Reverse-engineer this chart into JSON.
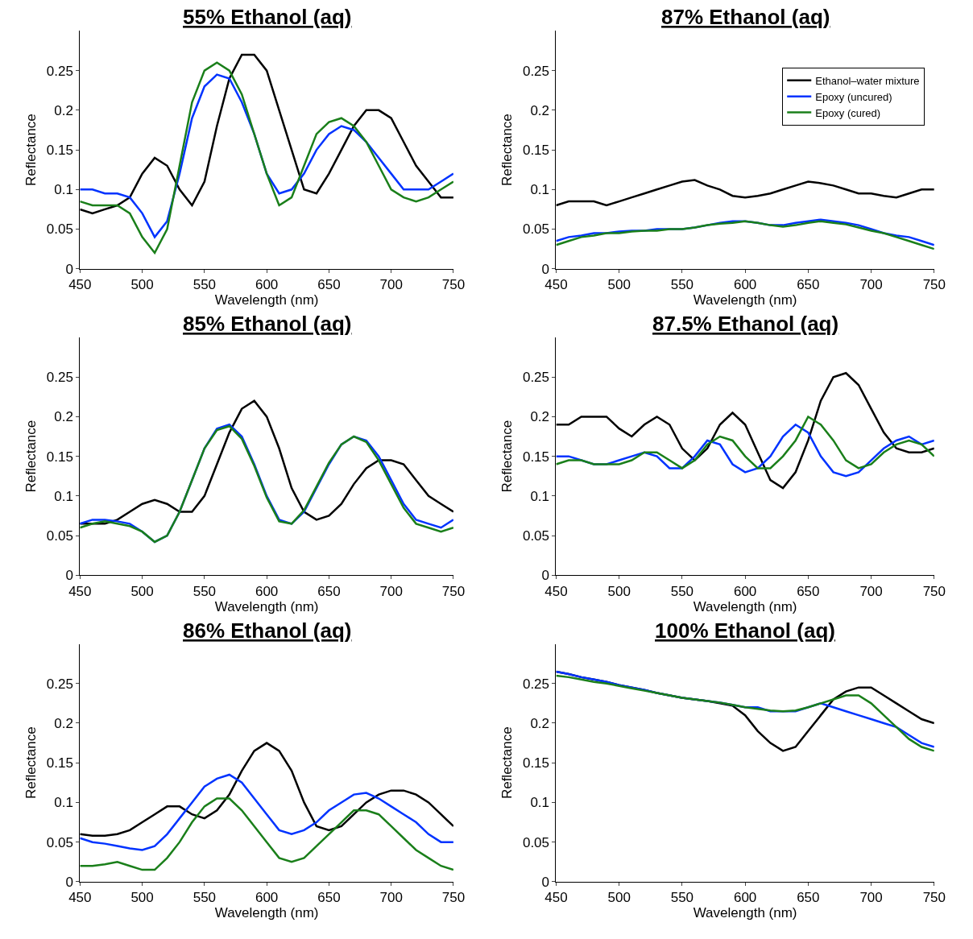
{
  "chart_data": [
    {
      "type": "line",
      "title": "55% Ethanol (aq)",
      "xlabel": "Wavelength (nm)",
      "ylabel": "Reflectance",
      "xlim": [
        450,
        750
      ],
      "xticks": [
        450,
        500,
        550,
        600,
        650,
        700,
        750
      ],
      "ylim": [
        0,
        0.3
      ],
      "yticks": [
        0,
        0.05,
        0.1,
        0.15,
        0.2,
        0.25
      ],
      "x": [
        450,
        460,
        470,
        480,
        490,
        500,
        510,
        520,
        530,
        540,
        550,
        560,
        570,
        580,
        590,
        600,
        610,
        620,
        630,
        640,
        650,
        660,
        670,
        680,
        690,
        700,
        710,
        720,
        730,
        740,
        750
      ],
      "series": [
        {
          "color": "#000000",
          "values": [
            0.075,
            0.07,
            0.075,
            0.08,
            0.09,
            0.12,
            0.14,
            0.13,
            0.1,
            0.08,
            0.11,
            0.18,
            0.24,
            0.27,
            0.27,
            0.25,
            0.2,
            0.15,
            0.1,
            0.095,
            0.12,
            0.15,
            0.18,
            0.2,
            0.2,
            0.19,
            0.16,
            0.13,
            0.11,
            0.09,
            0.09
          ]
        },
        {
          "color": "#0033ff",
          "values": [
            0.1,
            0.1,
            0.095,
            0.095,
            0.09,
            0.07,
            0.04,
            0.06,
            0.12,
            0.19,
            0.23,
            0.245,
            0.24,
            0.21,
            0.17,
            0.12,
            0.095,
            0.1,
            0.12,
            0.15,
            0.17,
            0.18,
            0.175,
            0.16,
            0.14,
            0.12,
            0.1,
            0.1,
            0.1,
            0.11,
            0.12
          ]
        },
        {
          "color": "#1a7f1a",
          "values": [
            0.085,
            0.08,
            0.08,
            0.08,
            0.07,
            0.04,
            0.02,
            0.05,
            0.13,
            0.21,
            0.25,
            0.26,
            0.25,
            0.22,
            0.17,
            0.12,
            0.08,
            0.09,
            0.13,
            0.17,
            0.185,
            0.19,
            0.18,
            0.16,
            0.13,
            0.1,
            0.09,
            0.085,
            0.09,
            0.1,
            0.11
          ]
        }
      ]
    },
    {
      "type": "line",
      "title": "87% Ethanol (aq)",
      "xlabel": "Wavelength (nm)",
      "ylabel": "Reflectance",
      "xlim": [
        450,
        750
      ],
      "xticks": [
        450,
        500,
        550,
        600,
        650,
        700,
        750
      ],
      "ylim": [
        0,
        0.3
      ],
      "yticks": [
        0,
        0.05,
        0.1,
        0.15,
        0.2,
        0.25
      ],
      "legend": "top right",
      "x": [
        450,
        460,
        470,
        480,
        490,
        500,
        510,
        520,
        530,
        540,
        550,
        560,
        570,
        580,
        590,
        600,
        610,
        620,
        630,
        640,
        650,
        660,
        670,
        680,
        690,
        700,
        710,
        720,
        730,
        740,
        750
      ],
      "series": [
        {
          "name": "Ethanol–water mixture",
          "color": "#000000",
          "values": [
            0.08,
            0.085,
            0.085,
            0.085,
            0.08,
            0.085,
            0.09,
            0.095,
            0.1,
            0.105,
            0.11,
            0.112,
            0.105,
            0.1,
            0.092,
            0.09,
            0.092,
            0.095,
            0.1,
            0.105,
            0.11,
            0.108,
            0.105,
            0.1,
            0.095,
            0.095,
            0.092,
            0.09,
            0.095,
            0.1,
            0.1
          ]
        },
        {
          "name": "Epoxy (uncured)",
          "color": "#0033ff",
          "values": [
            0.035,
            0.04,
            0.042,
            0.045,
            0.045,
            0.047,
            0.048,
            0.048,
            0.05,
            0.05,
            0.05,
            0.052,
            0.055,
            0.058,
            0.06,
            0.06,
            0.058,
            0.055,
            0.055,
            0.058,
            0.06,
            0.062,
            0.06,
            0.058,
            0.055,
            0.05,
            0.045,
            0.042,
            0.04,
            0.035,
            0.03
          ]
        },
        {
          "name": "Epoxy (cured)",
          "color": "#1a7f1a",
          "values": [
            0.03,
            0.035,
            0.04,
            0.042,
            0.045,
            0.045,
            0.047,
            0.048,
            0.048,
            0.05,
            0.05,
            0.052,
            0.055,
            0.057,
            0.058,
            0.06,
            0.058,
            0.055,
            0.053,
            0.055,
            0.058,
            0.06,
            0.058,
            0.056,
            0.052,
            0.048,
            0.045,
            0.04,
            0.035,
            0.03,
            0.025
          ]
        }
      ]
    },
    {
      "type": "line",
      "title": "85% Ethanol (aq)",
      "xlabel": "Wavelength (nm)",
      "ylabel": "Reflectance",
      "xlim": [
        450,
        750
      ],
      "xticks": [
        450,
        500,
        550,
        600,
        650,
        700,
        750
      ],
      "ylim": [
        0,
        0.3
      ],
      "yticks": [
        0,
        0.05,
        0.1,
        0.15,
        0.2,
        0.25
      ],
      "x": [
        450,
        460,
        470,
        480,
        490,
        500,
        510,
        520,
        530,
        540,
        550,
        560,
        570,
        580,
        590,
        600,
        610,
        620,
        630,
        640,
        650,
        660,
        670,
        680,
        690,
        700,
        710,
        720,
        730,
        740,
        750
      ],
      "series": [
        {
          "color": "#000000",
          "values": [
            0.065,
            0.065,
            0.065,
            0.07,
            0.08,
            0.09,
            0.095,
            0.09,
            0.08,
            0.08,
            0.1,
            0.14,
            0.18,
            0.21,
            0.22,
            0.2,
            0.16,
            0.11,
            0.08,
            0.07,
            0.075,
            0.09,
            0.115,
            0.135,
            0.145,
            0.145,
            0.14,
            0.12,
            0.1,
            0.09,
            0.08
          ]
        },
        {
          "color": "#0033ff",
          "values": [
            0.065,
            0.07,
            0.07,
            0.068,
            0.065,
            0.055,
            0.042,
            0.05,
            0.08,
            0.12,
            0.16,
            0.185,
            0.19,
            0.175,
            0.14,
            0.1,
            0.07,
            0.065,
            0.08,
            0.11,
            0.14,
            0.165,
            0.175,
            0.17,
            0.15,
            0.12,
            0.09,
            0.07,
            0.065,
            0.06,
            0.07
          ]
        },
        {
          "color": "#1a7f1a",
          "values": [
            0.06,
            0.065,
            0.068,
            0.065,
            0.062,
            0.055,
            0.042,
            0.05,
            0.08,
            0.12,
            0.16,
            0.183,
            0.188,
            0.172,
            0.138,
            0.098,
            0.068,
            0.065,
            0.082,
            0.112,
            0.142,
            0.165,
            0.175,
            0.168,
            0.145,
            0.115,
            0.085,
            0.065,
            0.06,
            0.055,
            0.06
          ]
        }
      ]
    },
    {
      "type": "line",
      "title": "87.5% Ethanol (aq)",
      "xlabel": "Wavelength (nm)",
      "ylabel": "Reflectance",
      "xlim": [
        450,
        750
      ],
      "xticks": [
        450,
        500,
        550,
        600,
        650,
        700,
        750
      ],
      "ylim": [
        0,
        0.3
      ],
      "yticks": [
        0,
        0.05,
        0.1,
        0.15,
        0.2,
        0.25
      ],
      "x": [
        450,
        460,
        470,
        480,
        490,
        500,
        510,
        520,
        530,
        540,
        550,
        560,
        570,
        580,
        590,
        600,
        610,
        620,
        630,
        640,
        650,
        660,
        670,
        680,
        690,
        700,
        710,
        720,
        730,
        740,
        750
      ],
      "series": [
        {
          "color": "#000000",
          "values": [
            0.19,
            0.19,
            0.2,
            0.2,
            0.2,
            0.185,
            0.175,
            0.19,
            0.2,
            0.19,
            0.16,
            0.145,
            0.16,
            0.19,
            0.205,
            0.19,
            0.155,
            0.12,
            0.11,
            0.13,
            0.17,
            0.22,
            0.25,
            0.255,
            0.24,
            0.21,
            0.18,
            0.16,
            0.155,
            0.155,
            0.16
          ]
        },
        {
          "color": "#0033ff",
          "values": [
            0.15,
            0.15,
            0.145,
            0.14,
            0.14,
            0.145,
            0.15,
            0.155,
            0.15,
            0.135,
            0.135,
            0.15,
            0.17,
            0.165,
            0.14,
            0.13,
            0.135,
            0.15,
            0.175,
            0.19,
            0.18,
            0.15,
            0.13,
            0.125,
            0.13,
            0.145,
            0.16,
            0.17,
            0.175,
            0.165,
            0.17
          ]
        },
        {
          "color": "#1a7f1a",
          "values": [
            0.14,
            0.145,
            0.145,
            0.14,
            0.14,
            0.14,
            0.145,
            0.155,
            0.155,
            0.145,
            0.135,
            0.145,
            0.165,
            0.175,
            0.17,
            0.15,
            0.135,
            0.135,
            0.15,
            0.17,
            0.2,
            0.19,
            0.17,
            0.145,
            0.135,
            0.14,
            0.155,
            0.165,
            0.17,
            0.165,
            0.15
          ]
        }
      ]
    },
    {
      "type": "line",
      "title": "86% Ethanol (aq)",
      "xlabel": "Wavelength (nm)",
      "ylabel": "Reflectance",
      "xlim": [
        450,
        750
      ],
      "xticks": [
        450,
        500,
        550,
        600,
        650,
        700,
        750
      ],
      "ylim": [
        0,
        0.3
      ],
      "yticks": [
        0,
        0.05,
        0.1,
        0.15,
        0.2,
        0.25
      ],
      "x": [
        450,
        460,
        470,
        480,
        490,
        500,
        510,
        520,
        530,
        540,
        550,
        560,
        570,
        580,
        590,
        600,
        610,
        620,
        630,
        640,
        650,
        660,
        670,
        680,
        690,
        700,
        710,
        720,
        730,
        740,
        750
      ],
      "series": [
        {
          "color": "#000000",
          "values": [
            0.06,
            0.058,
            0.058,
            0.06,
            0.065,
            0.075,
            0.085,
            0.095,
            0.095,
            0.085,
            0.08,
            0.09,
            0.11,
            0.14,
            0.165,
            0.175,
            0.165,
            0.14,
            0.1,
            0.07,
            0.065,
            0.07,
            0.085,
            0.1,
            0.11,
            0.115,
            0.115,
            0.11,
            0.1,
            0.085,
            0.07
          ]
        },
        {
          "color": "#0033ff",
          "values": [
            0.055,
            0.05,
            0.048,
            0.045,
            0.042,
            0.04,
            0.045,
            0.06,
            0.08,
            0.1,
            0.12,
            0.13,
            0.135,
            0.125,
            0.105,
            0.085,
            0.065,
            0.06,
            0.065,
            0.075,
            0.09,
            0.1,
            0.11,
            0.112,
            0.105,
            0.095,
            0.085,
            0.075,
            0.06,
            0.05,
            0.05
          ]
        },
        {
          "color": "#1a7f1a",
          "values": [
            0.02,
            0.02,
            0.022,
            0.025,
            0.02,
            0.015,
            0.015,
            0.03,
            0.05,
            0.075,
            0.095,
            0.105,
            0.105,
            0.09,
            0.07,
            0.05,
            0.03,
            0.025,
            0.03,
            0.045,
            0.06,
            0.075,
            0.09,
            0.09,
            0.085,
            0.07,
            0.055,
            0.04,
            0.03,
            0.02,
            0.015
          ]
        }
      ]
    },
    {
      "type": "line",
      "title": "100% Ethanol (aq)",
      "xlabel": "Wavelength (nm)",
      "ylabel": "Reflectance",
      "xlim": [
        450,
        750
      ],
      "xticks": [
        450,
        500,
        550,
        600,
        650,
        700,
        750
      ],
      "ylim": [
        0,
        0.3
      ],
      "yticks": [
        0,
        0.05,
        0.1,
        0.15,
        0.2,
        0.25
      ],
      "x": [
        450,
        460,
        470,
        480,
        490,
        500,
        510,
        520,
        530,
        540,
        550,
        560,
        570,
        580,
        590,
        600,
        610,
        620,
        630,
        640,
        650,
        660,
        670,
        680,
        690,
        700,
        710,
        720,
        730,
        740,
        750
      ],
      "series": [
        {
          "color": "#000000",
          "values": [
            0.265,
            0.262,
            0.258,
            0.255,
            0.252,
            0.248,
            0.245,
            0.242,
            0.238,
            0.235,
            0.232,
            0.23,
            0.228,
            0.225,
            0.222,
            0.21,
            0.19,
            0.175,
            0.165,
            0.17,
            0.19,
            0.21,
            0.23,
            0.24,
            0.245,
            0.245,
            0.235,
            0.225,
            0.215,
            0.205,
            0.2
          ]
        },
        {
          "color": "#0033ff",
          "values": [
            0.265,
            0.262,
            0.258,
            0.255,
            0.252,
            0.248,
            0.245,
            0.242,
            0.238,
            0.235,
            0.232,
            0.23,
            0.228,
            0.226,
            0.223,
            0.22,
            0.22,
            0.215,
            0.215,
            0.215,
            0.22,
            0.225,
            0.22,
            0.215,
            0.21,
            0.205,
            0.2,
            0.195,
            0.185,
            0.175,
            0.17
          ]
        },
        {
          "color": "#1a7f1a",
          "values": [
            0.26,
            0.258,
            0.255,
            0.252,
            0.25,
            0.247,
            0.244,
            0.241,
            0.238,
            0.235,
            0.232,
            0.23,
            0.228,
            0.226,
            0.223,
            0.22,
            0.218,
            0.216,
            0.215,
            0.216,
            0.22,
            0.225,
            0.23,
            0.235,
            0.235,
            0.225,
            0.21,
            0.195,
            0.18,
            0.17,
            0.165
          ]
        }
      ]
    }
  ]
}
